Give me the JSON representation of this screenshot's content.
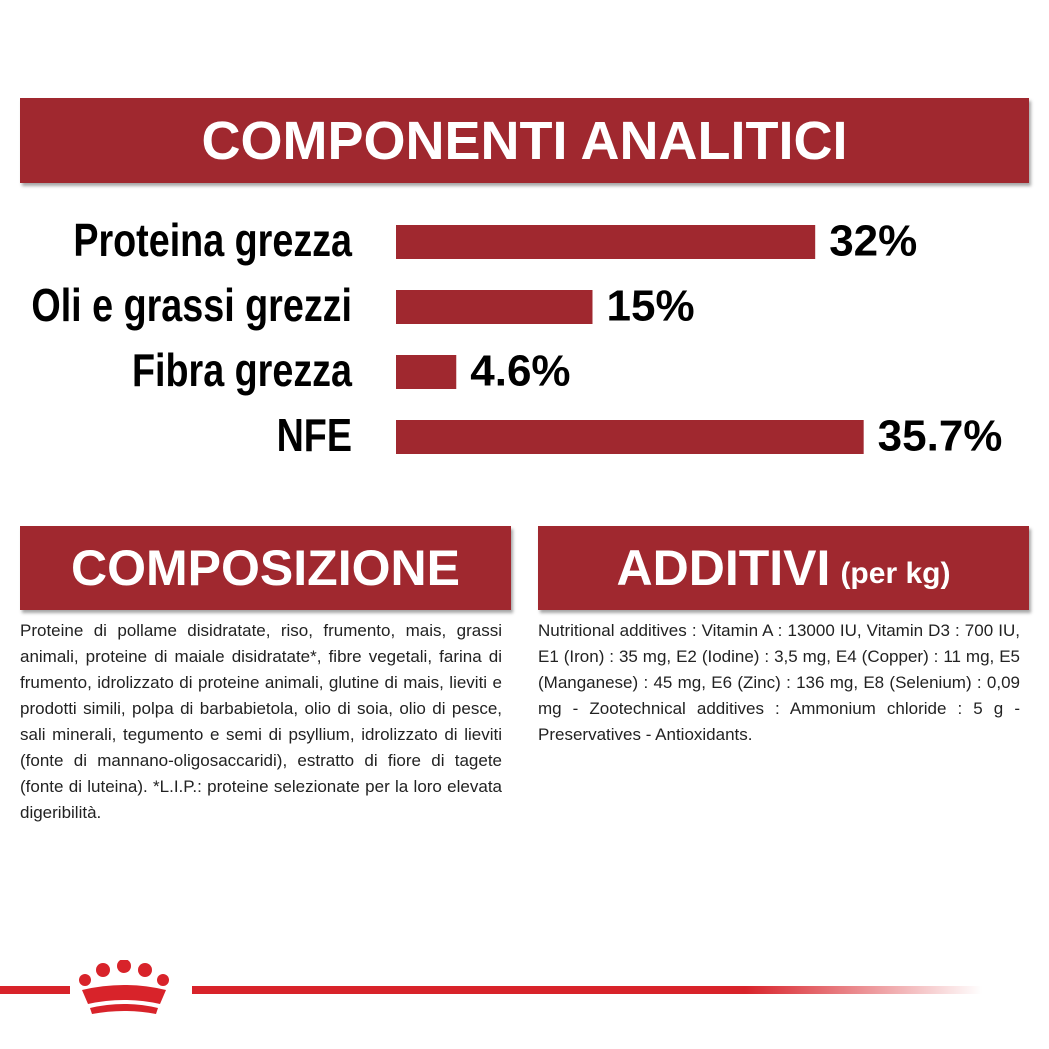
{
  "chart_data": {
    "type": "bar",
    "title": "COMPONENTI ANALITICI",
    "categories": [
      "Proteina grezza",
      "Oli e grassi grezzi",
      "Fibra grezza",
      "NFE"
    ],
    "values": [
      32,
      15,
      4.6,
      35.7
    ],
    "value_labels": [
      "32%",
      "15%",
      "4.6%",
      "35.7%"
    ],
    "color": "#a0282f"
  },
  "composizione": {
    "title": "COMPOSIZIONE",
    "text": "Proteine di pollame disidratate, riso, frumento, mais, grassi animali, proteine di maiale disidratate*, fibre vegetali, farina di frumento, idrolizzato di proteine animali, glutine di mais, lieviti e prodotti simili, polpa di barbabietola, olio di soia, olio di pesce, sali minerali, tegumento e semi di psyllium, idrolizzato di lieviti (fonte di mannano-oligosaccaridi), estratto di fiore di tagete (fonte di luteina). *L.I.P.: proteine selezionate per la loro elevata digeribilità."
  },
  "additivi": {
    "title": "ADDITIVI",
    "subtitle": "(per kg)",
    "text": "Nutritional additives : Vitamin A : 13000 IU, Vitamin D3 : 700 IU, E1 (Iron) : 35 mg, E2 (Iodine) : 3,5 mg, E4 (Copper) : 11 mg, E5 (Manganese) : 45 mg, E6 (Zinc) : 136 mg, E8 (Selenium) : 0,09 mg - Zootechnical additives : Ammonium chloride : 5 g - Preservatives - Antioxidants."
  }
}
